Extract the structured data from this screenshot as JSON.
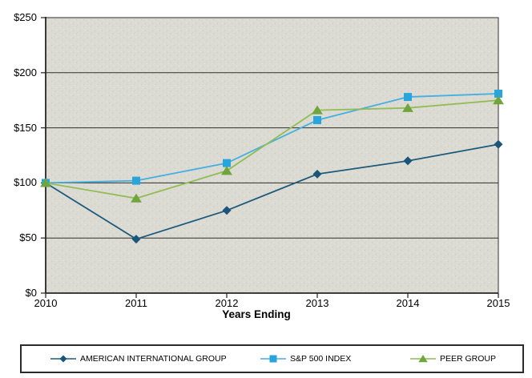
{
  "chart_data": {
    "type": "line",
    "title": "",
    "xlabel": "Years Ending",
    "ylabel": "",
    "x_tick_labels": [
      "2010",
      "2011",
      "2012",
      "2013",
      "2014",
      "2015"
    ],
    "y_tick_labels": [
      "$250",
      "$200",
      "$150",
      "$100",
      "$50",
      "$0"
    ],
    "ylim": [
      0,
      250
    ],
    "y_tick_step": 50,
    "grid": "horizontal",
    "legend_position": "bottom",
    "plot_bg_color": "#dcdbd3",
    "grid_color": "#2f2f2b",
    "series": [
      {
        "name": "AMERICAN INTERNATIONAL GROUP",
        "marker": "diamond",
        "line_color": "#1d5a7d",
        "marker_color": "#1b5579",
        "values": [
          100,
          49,
          75,
          108,
          120,
          135
        ]
      },
      {
        "name": "S&P 500 INDEX",
        "marker": "square",
        "line_color": "#45afe0",
        "marker_color": "#29a5de",
        "values": [
          100,
          102,
          118,
          157,
          178,
          181
        ]
      },
      {
        "name": "PEER GROUP",
        "marker": "triangle",
        "line_color": "#92bc55",
        "marker_color": "#6fa53c",
        "values": [
          100,
          86,
          111,
          166,
          168,
          175
        ]
      }
    ]
  }
}
